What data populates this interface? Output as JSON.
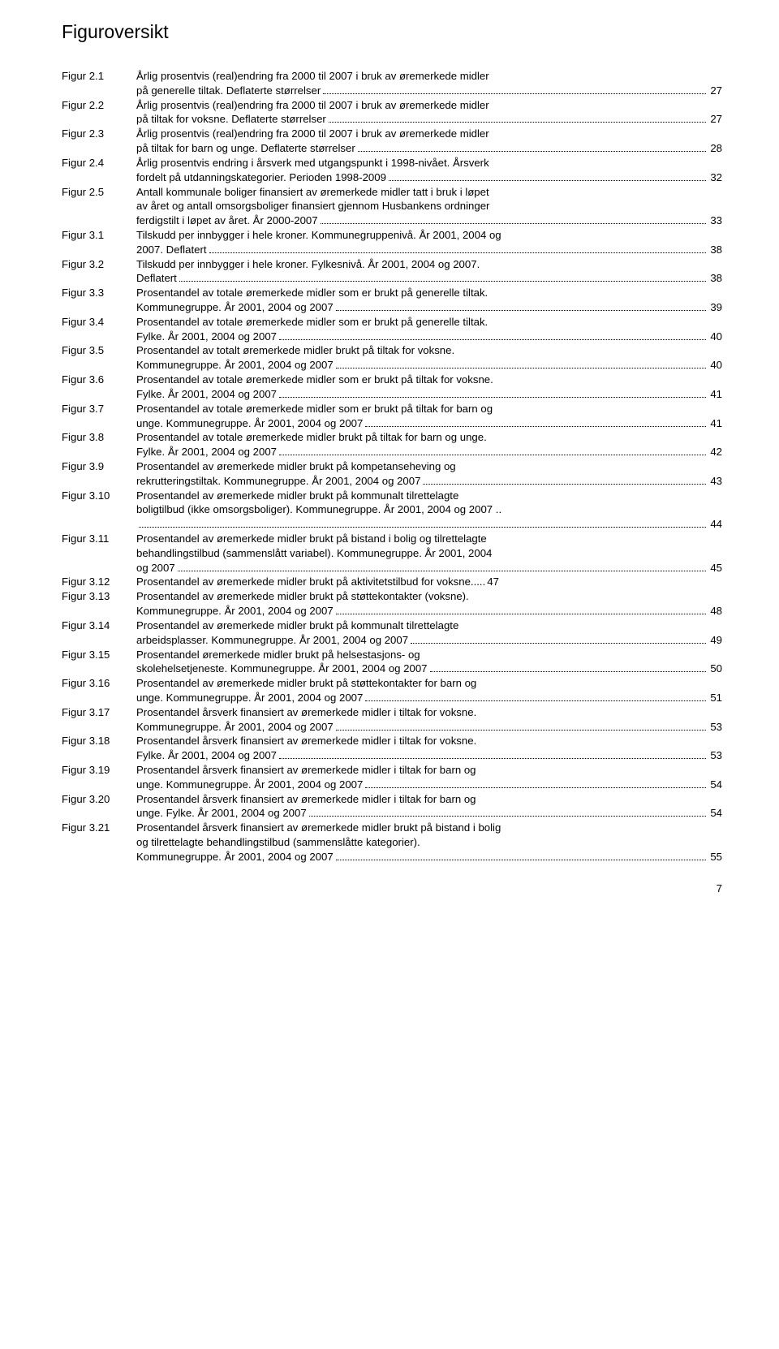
{
  "title": "Figuroversikt",
  "page_number": "7",
  "entries": [
    {
      "label": "Figur 2.1",
      "lines": [
        {
          "t": "Årlig prosentvis (real)endring fra 2000 til 2007 i bruk av øremerkede midler"
        },
        {
          "t": "på generelle tiltak. Deflaterte størrelser",
          "p": "27"
        }
      ]
    },
    {
      "label": "Figur 2.2",
      "lines": [
        {
          "t": "Årlig prosentvis (real)endring fra 2000 til 2007 i bruk av øremerkede midler"
        },
        {
          "t": "på tiltak for voksne. Deflaterte størrelser",
          "p": "27"
        }
      ]
    },
    {
      "label": "Figur 2.3",
      "lines": [
        {
          "t": "Årlig prosentvis (real)endring fra 2000 til 2007 i bruk av øremerkede midler"
        },
        {
          "t": "på tiltak for barn og unge. Deflaterte størrelser",
          "p": "28"
        }
      ]
    },
    {
      "label": "Figur 2.4",
      "lines": [
        {
          "t": "Årlig prosentvis endring i årsverk med utgangspunkt i 1998-nivået. Årsverk"
        },
        {
          "t": "fordelt på utdanningskategorier. Perioden 1998-2009",
          "p": "32"
        }
      ]
    },
    {
      "label": "Figur 2.5",
      "lines": [
        {
          "t": "Antall kommunale boliger finansiert av øremerkede midler tatt i bruk i løpet"
        },
        {
          "t": "av året og antall omsorgsboliger finansiert gjennom Husbankens ordninger"
        },
        {
          "t": "ferdigstilt i løpet av året. År 2000-2007",
          "p": "33"
        }
      ]
    },
    {
      "label": "Figur 3.1",
      "lines": [
        {
          "t": "Tilskudd per innbygger i hele kroner. Kommunegruppenivå. År 2001, 2004 og"
        },
        {
          "t": "2007. Deflatert",
          "p": "38"
        }
      ]
    },
    {
      "label": "Figur 3.2",
      "lines": [
        {
          "t": "Tilskudd per innbygger i hele kroner. Fylkesnivå. År 2001, 2004 og 2007."
        },
        {
          "t": "Deflatert",
          "p": "38"
        }
      ]
    },
    {
      "label": "Figur 3.3",
      "lines": [
        {
          "t": "Prosentandel av totale øremerkede midler som er brukt på generelle tiltak."
        },
        {
          "t": "Kommunegruppe. År 2001, 2004 og 2007",
          "p": "39"
        }
      ]
    },
    {
      "label": "Figur 3.4",
      "lines": [
        {
          "t": "Prosentandel av totale øremerkede midler som er brukt på generelle tiltak."
        },
        {
          "t": "Fylke. År 2001, 2004 og 2007",
          "p": "40"
        }
      ]
    },
    {
      "label": "Figur 3.5",
      "lines": [
        {
          "t": "Prosentandel av totalt øremerkede midler brukt på tiltak for voksne."
        },
        {
          "t": "Kommunegruppe. År 2001, 2004 og 2007",
          "p": "40"
        }
      ]
    },
    {
      "label": "Figur 3.6",
      "lines": [
        {
          "t": "Prosentandel av totale øremerkede midler som er brukt på tiltak for voksne."
        },
        {
          "t": "Fylke. År 2001, 2004 og 2007",
          "p": "41"
        }
      ]
    },
    {
      "label": "Figur 3.7",
      "lines": [
        {
          "t": "Prosentandel av totale øremerkede midler som er brukt på tiltak for barn og"
        },
        {
          "t": "unge. Kommunegruppe. År 2001, 2004 og 2007",
          "p": "41"
        }
      ]
    },
    {
      "label": "Figur 3.8",
      "lines": [
        {
          "t": "Prosentandel av totale øremerkede midler brukt på tiltak for barn og unge."
        },
        {
          "t": "Fylke. År 2001, 2004 og 2007",
          "p": "42"
        }
      ]
    },
    {
      "label": "Figur 3.9",
      "lines": [
        {
          "t": "Prosentandel av øremerkede midler brukt på kompetanseheving og"
        },
        {
          "t": "rekrutteringstiltak. Kommunegruppe. År 2001, 2004 og 2007",
          "p": "43"
        }
      ]
    },
    {
      "label": "Figur 3.10",
      "lines": [
        {
          "t": "Prosentandel av øremerkede midler brukt på kommunalt tilrettelagte"
        },
        {
          "t": "boligtilbud (ikke omsorgsboliger). Kommunegruppe. År 2001, 2004 og 2007 .."
        },
        {
          "t": "",
          "p": "44",
          "full": true
        }
      ]
    },
    {
      "label": "Figur 3.11",
      "lines": [
        {
          "t": "Prosentandel av øremerkede midler brukt på bistand i bolig og tilrettelagte"
        },
        {
          "t": "behandlingstilbud (sammenslått variabel). Kommunegruppe. År 2001, 2004"
        },
        {
          "t": "og 2007",
          "p": "45"
        }
      ]
    },
    {
      "label": "Figur 3.12",
      "lines": [
        {
          "t": "Prosentandel av øremerkede midler brukt på aktivitetstilbud for voksne.",
          "p": "47",
          "nodots": true
        }
      ]
    },
    {
      "label": "Figur 3.13",
      "lines": [
        {
          "t": "Prosentandel av øremerkede midler brukt på støttekontakter (voksne)."
        },
        {
          "t": "Kommunegruppe. År 2001, 2004 og 2007",
          "p": "48"
        }
      ]
    },
    {
      "label": "Figur 3.14",
      "lines": [
        {
          "t": "Prosentandel av øremerkede midler brukt på kommunalt tilrettelagte"
        },
        {
          "t": "arbeidsplasser. Kommunegruppe. År 2001, 2004 og 2007",
          "p": "49"
        }
      ]
    },
    {
      "label": "Figur 3.15",
      "lines": [
        {
          "t": "Prosentandel øremerkede midler brukt på helsestasjons- og"
        },
        {
          "t": "skolehelsetjeneste. Kommunegruppe. År 2001, 2004 og 2007",
          "p": "50"
        }
      ]
    },
    {
      "label": "Figur 3.16",
      "lines": [
        {
          "t": "Prosentandel av øremerkede midler brukt på støttekontakter for barn og"
        },
        {
          "t": "unge. Kommunegruppe. År 2001, 2004 og 2007",
          "p": "51"
        }
      ]
    },
    {
      "label": "Figur 3.17",
      "lines": [
        {
          "t": "Prosentandel årsverk finansiert av øremerkede midler i tiltak for voksne."
        },
        {
          "t": "Kommunegruppe. År 2001, 2004 og 2007",
          "p": "53"
        }
      ]
    },
    {
      "label": "Figur 3.18",
      "lines": [
        {
          "t": "Prosentandel årsverk finansiert av øremerkede midler i tiltak for voksne."
        },
        {
          "t": "Fylke. År 2001, 2004 og 2007",
          "p": "53"
        }
      ]
    },
    {
      "label": "Figur 3.19",
      "lines": [
        {
          "t": "Prosentandel årsverk finansiert av øremerkede midler i tiltak for barn og"
        },
        {
          "t": "unge. Kommunegruppe. År 2001, 2004 og 2007",
          "p": "54"
        }
      ]
    },
    {
      "label": "Figur 3.20",
      "lines": [
        {
          "t": "Prosentandel årsverk finansiert av øremerkede midler i tiltak for barn og"
        },
        {
          "t": "unge. Fylke. År 2001, 2004 og 2007",
          "p": "54"
        }
      ]
    },
    {
      "label": "Figur 3.21",
      "lines": [
        {
          "t": "Prosentandel årsverk finansiert av øremerkede midler brukt på bistand i bolig"
        },
        {
          "t": "og tilrettelagte behandlingstilbud (sammenslåtte kategorier)."
        },
        {
          "t": "Kommunegruppe. År 2001, 2004 og 2007",
          "p": "55"
        }
      ]
    }
  ]
}
